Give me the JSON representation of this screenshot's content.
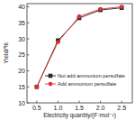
{
  "chart_data": {
    "type": "line",
    "x_label": "Electricity quantity/(F·mol⁻¹)",
    "y_label": "Yield/%",
    "x": [
      0.5,
      1.0,
      1.5,
      2.0,
      2.5
    ],
    "series": [
      {
        "name": "Not add ammonium persulfate",
        "color": "#222222",
        "marker": "square",
        "values": [
          15,
          29.5,
          36.5,
          39,
          39.7
        ]
      },
      {
        "name": "Add ammonium persulfate",
        "color": "#e03030",
        "marker": "circle",
        "values": [
          15,
          29,
          37,
          39.3,
          40
        ]
      }
    ],
    "xlim": [
      0.27,
      2.75
    ],
    "xticks": [
      0.5,
      {
        "value": 1,
        "label": "1.0"
      },
      1.5,
      {
        "value": 2,
        "label": "2.0"
      },
      2.5
    ],
    "ylim": [
      10,
      41
    ],
    "yticks": [
      10,
      15,
      20,
      25,
      30,
      35,
      40
    ],
    "grid": false,
    "legend": "lower right"
  }
}
